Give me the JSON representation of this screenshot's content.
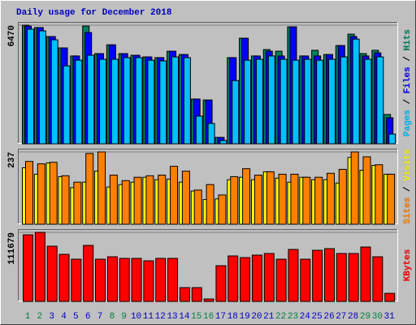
{
  "chart_data": {
    "type": "bar",
    "title": "Daily usage for December 2018",
    "categories": [
      "1",
      "2",
      "3",
      "4",
      "5",
      "6",
      "7",
      "8",
      "9",
      "10",
      "11",
      "12",
      "13",
      "14",
      "15",
      "16",
      "17",
      "18",
      "19",
      "20",
      "21",
      "22",
      "23",
      "24",
      "25",
      "26",
      "27",
      "28",
      "29",
      "30",
      "31"
    ],
    "category_colors": [
      "#008040",
      "#008040",
      "#0000c0",
      "#0000c0",
      "#0000c0",
      "#0000c0",
      "#0000c0",
      "#008040",
      "#008040",
      "#0000c0",
      "#0000c0",
      "#0000c0",
      "#0000c0",
      "#0000c0",
      "#008040",
      "#008040",
      "#0000c0",
      "#0000c0",
      "#0000c0",
      "#0000c0",
      "#0000c0",
      "#008040",
      "#008040",
      "#0000c0",
      "#0000c0",
      "#0000c0",
      "#0000c0",
      "#0000c0",
      "#008040",
      "#008040",
      "#0000c0"
    ],
    "legend_separator": " / ",
    "panels": [
      {
        "ylim": [
          0,
          6470
        ],
        "yticks": [
          6470
        ],
        "series": [
          {
            "name": "Hits",
            "color": "#008060",
            "values": [
              6470,
              6340,
              5850,
              5230,
              4790,
              6420,
              4920,
              5400,
              4920,
              4830,
              4740,
              4700,
              5050,
              4870,
              2440,
              2390,
              350,
              4700,
              5760,
              4790,
              5140,
              5050,
              6380,
              4790,
              5100,
              4870,
              5360,
              5980,
              4920,
              5100,
              1600
            ]
          },
          {
            "name": "Files",
            "color": "#0000ff",
            "values": [
              6420,
              6340,
              5850,
              5230,
              4790,
              6070,
              4920,
              5400,
              4920,
              4830,
              4740,
              4700,
              5050,
              4870,
              2440,
              2390,
              350,
              4700,
              5760,
              4790,
              5050,
              4790,
              6380,
              4790,
              4790,
              4870,
              5360,
              5850,
              4790,
              4960,
              1420
            ]
          },
          {
            "name": "Pages",
            "color": "#00c0ff",
            "values": [
              6250,
              6160,
              5670,
              4250,
              4560,
              4830,
              4610,
              4610,
              4700,
              4700,
              4560,
              4520,
              4740,
              4700,
              1510,
              1110,
              180,
              3450,
              4560,
              4610,
              4790,
              4610,
              4560,
              4610,
              4560,
              4610,
              4740,
              5710,
              4610,
              4740,
              530
            ]
          }
        ]
      },
      {
        "ylim": [
          0,
          237
        ],
        "yticks": [
          237
        ],
        "series": [
          {
            "name": "Visits",
            "color": "#ffff00",
            "values": [
              185,
              164,
              201,
              156,
              120,
              138,
              174,
              122,
              130,
              138,
              154,
              146,
              148,
              138,
              109,
              81,
              83,
              146,
              154,
              146,
              172,
              151,
              138,
              154,
              146,
              146,
              135,
              219,
              177,
              193,
              164
            ]
          },
          {
            "name": "Sites",
            "color": "#ff8000",
            "values": [
              206,
              198,
              203,
              159,
              138,
              232,
              237,
              161,
              143,
              154,
              159,
              161,
              190,
              174,
              112,
              130,
              96,
              156,
              182,
              161,
              172,
              164,
              164,
              154,
              154,
              167,
              180,
              237,
              221,
              195,
              164
            ]
          }
        ]
      },
      {
        "ylim": [
          0,
          111679
        ],
        "yticks": [
          111679
        ],
        "series": [
          {
            "name": "KBytes",
            "color": "#ff0000",
            "values": [
              107737,
              111679,
              89330,
              76190,
              68307,
              90644,
              68307,
              72250,
              69621,
              69621,
              65680,
              69621,
              69621,
              22340,
              22340,
              3940,
              57800,
              73570,
              70950,
              74890,
              77520,
              68307,
              84070,
              68307,
              82750,
              85380,
              77520,
              77520,
              88010,
              72250,
              13140
            ]
          }
        ]
      }
    ]
  }
}
